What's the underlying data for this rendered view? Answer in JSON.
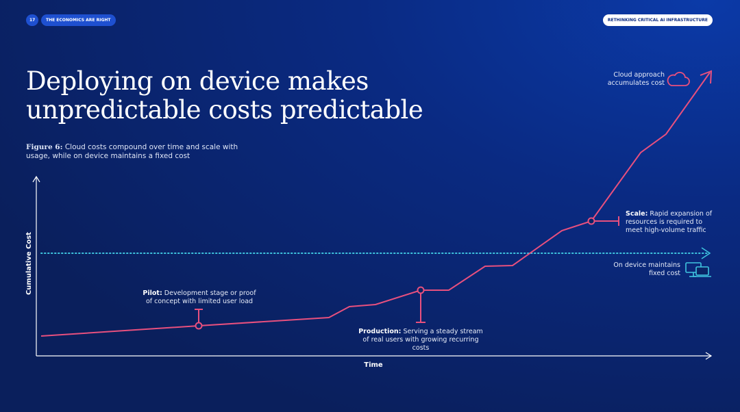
{
  "header": {
    "page_number": "17",
    "section": "THE ECONOMICS ARE RIGHT",
    "report": "RETHINKING CRITICAL AI INFRASTRUCTURE"
  },
  "title": [
    "Deploying on device makes",
    "unpredictable costs predictable"
  ],
  "figure": {
    "label": "Figure 6:",
    "caption": "Cloud costs compound over time and scale with usage, while on device maintains a fixed cost"
  },
  "diagram": {
    "y_axis_label": "Cumulative Cost",
    "x_axis_label": "Time",
    "annotations": [
      {
        "label": "Pilot:",
        "text": "Development stage or proof of concept with limited user load"
      },
      {
        "label": "Production:",
        "text": "Serving a steady stream of real users with growing recurring costs"
      },
      {
        "label": "Scale:",
        "text": "Rapid expansion of resources is required to meet high-volume traffic"
      }
    ],
    "cloud_note": "Cloud approach accumulates cost",
    "device_note": "On device maintains fixed cost"
  }
}
